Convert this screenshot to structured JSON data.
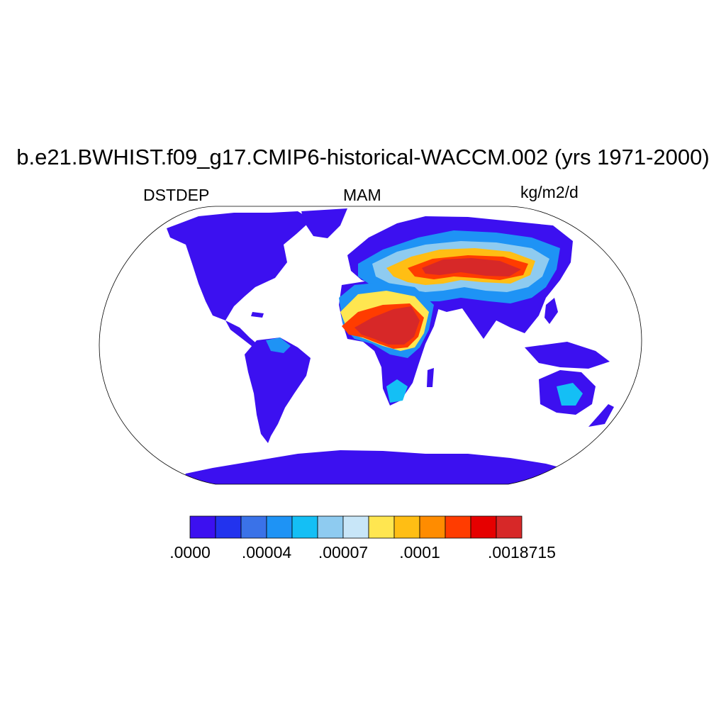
{
  "figure": {
    "title": "b.e21.BWHIST.f09_g17.CMIP6-historical-WACCM.002 (yrs 1971-2000)",
    "left_label": "DSTDEP",
    "center_label": "MAM",
    "right_label": "kg/m2/d"
  },
  "map": {
    "projection": "Robinson",
    "land_default_color": "#3c10f0",
    "ocean_color": "#ffffff"
  },
  "colorbar": {
    "colors": [
      "#3c10f0",
      "#2233ee",
      "#3a72e8",
      "#1e93f5",
      "#14bff5",
      "#8ecbf0",
      "#c8e6f8",
      "#ffe650",
      "#ffbe14",
      "#ff8c00",
      "#ff3c00",
      "#e60000",
      "#d72828"
    ],
    "labels": [
      ".0000",
      ".00004",
      ".00007",
      ".0001",
      ".0018715"
    ],
    "label_positions": [
      0,
      3,
      6,
      9,
      13
    ]
  }
}
